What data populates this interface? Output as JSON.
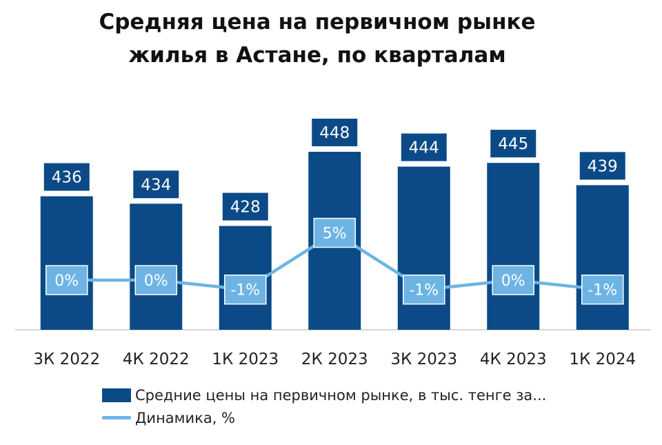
{
  "title_line1": "Средняя цена на первичном рынке",
  "title_line2": "жилья в Астане, по кварталам",
  "chart_data": {
    "type": "bar",
    "categories": [
      "3К 2022",
      "4К 2022",
      "1К 2023",
      "2К 2023",
      "3К 2023",
      "4К 2023",
      "1К 2024"
    ],
    "series": [
      {
        "name": "Средние цены на первичном рынке, в тыс. тенге за...",
        "type": "bar",
        "values": [
          436,
          434,
          428,
          448,
          444,
          445,
          439
        ],
        "labels": [
          "436",
          "434",
          "428",
          "448",
          "444",
          "445",
          "439"
        ],
        "color": "#0b4a86"
      },
      {
        "name": "Динамика, %",
        "type": "line",
        "values": [
          0,
          0,
          -1,
          5,
          -1,
          0,
          -1
        ],
        "labels": [
          "0%",
          "0%",
          "-1%",
          "5%",
          "-1%",
          "0%",
          "-1%"
        ],
        "color": "#6db4e4"
      }
    ],
    "legend_position": "bottom-left",
    "grid": false
  }
}
